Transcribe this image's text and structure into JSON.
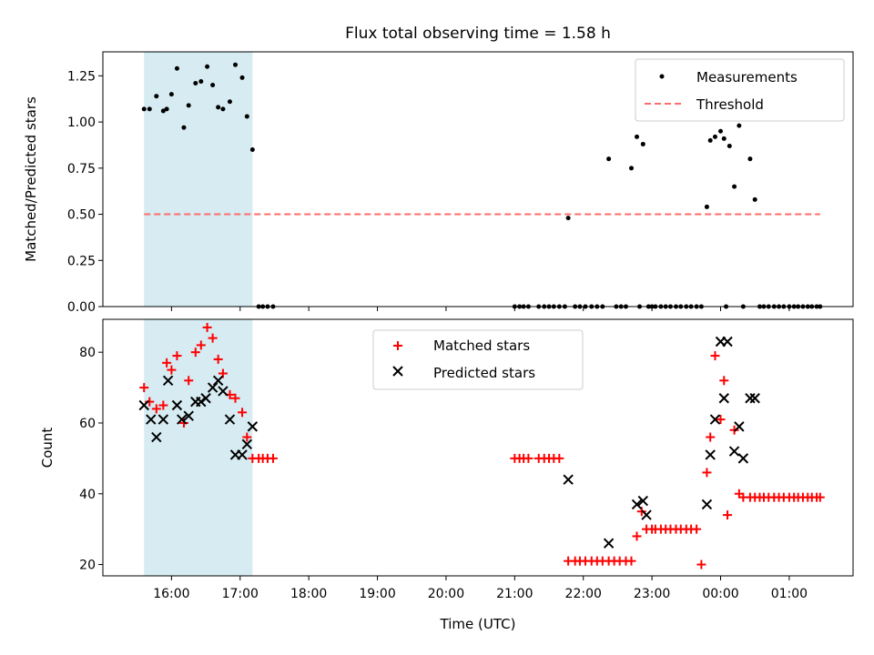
{
  "colors": {
    "shade": "#add8e6",
    "measurement": "#000000",
    "threshold": "#ff6b6b",
    "matched": "#ff0000",
    "predicted": "#000000"
  },
  "chart_data": [
    {
      "type": "scatter",
      "title": "Flux total observing time = 1.58 h",
      "xlabel": "",
      "ylabel": "Matched/Predicted stars",
      "x_units": "hours since 00:00 UTC (values >24 are after midnight)",
      "xlim": [
        15.0,
        25.93
      ],
      "ylim": [
        0,
        1.38
      ],
      "yticks": [
        0,
        0.25,
        0.5,
        0.75,
        1.0,
        1.25
      ],
      "ytick_labels": [
        "0.00",
        "0.25",
        "0.50",
        "0.75",
        "1.00",
        "1.25"
      ],
      "xticks": [
        16,
        17,
        18,
        19,
        20,
        21,
        22,
        23,
        24,
        25
      ],
      "shaded_span": [
        15.6,
        17.18
      ],
      "legend": [
        "Measurements",
        "Threshold"
      ],
      "legend_position": "top-right",
      "threshold": {
        "name": "Threshold",
        "value": 0.5,
        "x_range": [
          15.6,
          25.45
        ]
      },
      "series": [
        {
          "name": "Measurements",
          "x": [
            15.6,
            15.68,
            15.78,
            15.88,
            15.93,
            16.0,
            16.08,
            16.18,
            16.25,
            16.35,
            16.43,
            16.52,
            16.6,
            16.68,
            16.75,
            16.85,
            16.93,
            17.03,
            17.1,
            17.18,
            17.27,
            17.33,
            17.4,
            17.48,
            21.0,
            21.07,
            21.13,
            21.2,
            21.35,
            21.43,
            21.5,
            21.57,
            21.65,
            21.73,
            21.78,
            21.88,
            21.95,
            22.03,
            22.12,
            22.2,
            22.28,
            22.37,
            22.48,
            22.55,
            22.62,
            22.7,
            22.78,
            22.82,
            22.87,
            22.95,
            23.0,
            23.05,
            23.13,
            23.2,
            23.27,
            23.35,
            23.42,
            23.5,
            23.57,
            23.65,
            23.72,
            23.8,
            23.85,
            23.92,
            24.0,
            24.05,
            24.08,
            24.13,
            24.2,
            24.27,
            24.33,
            24.43,
            24.5,
            24.57,
            24.63,
            24.7,
            24.78,
            24.85,
            24.92,
            25.0,
            25.07,
            25.13,
            25.2,
            25.27,
            25.33,
            25.4,
            25.45
          ],
          "y": [
            1.07,
            1.07,
            1.14,
            1.06,
            1.07,
            1.15,
            1.29,
            0.97,
            1.09,
            1.21,
            1.22,
            1.3,
            1.2,
            1.08,
            1.07,
            1.11,
            1.31,
            1.24,
            1.03,
            0.85,
            0,
            0,
            0,
            0,
            0,
            0,
            0,
            0,
            0,
            0,
            0,
            0,
            0,
            0,
            0.48,
            0,
            0,
            0,
            0,
            0,
            0,
            0.8,
            0,
            0,
            0,
            0.75,
            0.92,
            0,
            0.88,
            0,
            0,
            0,
            0,
            0,
            0,
            0,
            0,
            0,
            0,
            0,
            0,
            0.54,
            0.9,
            0.92,
            0.95,
            0.91,
            0,
            0.87,
            0.65,
            0.98,
            0,
            0.8,
            0.58,
            0,
            0,
            0,
            0,
            0,
            0,
            0,
            0,
            0,
            0,
            0,
            0,
            0,
            0
          ]
        }
      ]
    },
    {
      "type": "scatter",
      "title": "",
      "xlabel": "Time (UTC)",
      "ylabel": "Count",
      "xlim": [
        15.0,
        25.93
      ],
      "ylim": [
        16.8,
        89.3
      ],
      "yticks": [
        20,
        40,
        60,
        80
      ],
      "ytick_labels": [
        "20",
        "40",
        "60",
        "80"
      ],
      "xticks": [
        16,
        17,
        18,
        19,
        20,
        21,
        22,
        23,
        24,
        25
      ],
      "xtick_labels": [
        "16:00",
        "17:00",
        "18:00",
        "19:00",
        "20:00",
        "21:00",
        "22:00",
        "23:00",
        "00:00",
        "01:00"
      ],
      "shaded_span": [
        15.6,
        17.18
      ],
      "legend": [
        "Matched stars",
        "Predicted stars"
      ],
      "legend_position": "top-center",
      "series": [
        {
          "name": "Matched stars",
          "marker": "+",
          "x": [
            15.6,
            15.68,
            15.78,
            15.88,
            15.93,
            16.0,
            16.08,
            16.18,
            16.25,
            16.35,
            16.43,
            16.52,
            16.6,
            16.68,
            16.75,
            16.85,
            16.93,
            17.03,
            17.1,
            17.18,
            17.27,
            17.33,
            17.4,
            17.48,
            21.0,
            21.07,
            21.13,
            21.2,
            21.35,
            21.43,
            21.5,
            21.57,
            21.65,
            21.78,
            21.88,
            21.95,
            22.03,
            22.12,
            22.2,
            22.28,
            22.37,
            22.45,
            22.53,
            22.62,
            22.7,
            22.78,
            22.85,
            22.92,
            23.0,
            23.05,
            23.13,
            23.2,
            23.27,
            23.35,
            23.42,
            23.5,
            23.57,
            23.65,
            23.72,
            23.8,
            23.85,
            23.92,
            24.0,
            24.05,
            24.1,
            24.2,
            24.27,
            24.33,
            24.43,
            24.5,
            24.57,
            24.63,
            24.7,
            24.78,
            24.85,
            24.92,
            25.0,
            25.07,
            25.13,
            25.2,
            25.27,
            25.33,
            25.4,
            25.45
          ],
          "y": [
            70,
            66,
            64,
            65,
            77,
            75,
            79,
            60,
            72,
            80,
            82,
            87,
            84,
            78,
            74,
            68,
            67,
            63,
            56,
            50,
            50,
            50,
            50,
            50,
            50,
            50,
            50,
            50,
            50,
            50,
            50,
            50,
            50,
            21,
            21,
            21,
            21,
            21,
            21,
            21,
            21,
            21,
            21,
            21,
            21,
            28,
            35,
            30,
            30,
            30,
            30,
            30,
            30,
            30,
            30,
            30,
            30,
            30,
            20,
            46,
            56,
            79,
            61,
            72,
            34,
            58,
            40,
            39,
            39,
            39,
            39,
            39,
            39,
            39,
            39,
            39,
            39,
            39,
            39,
            39,
            39,
            39,
            39,
            39
          ]
        },
        {
          "name": "Predicted stars",
          "marker": "x",
          "x": [
            15.6,
            15.7,
            15.78,
            15.88,
            15.95,
            16.08,
            16.15,
            16.25,
            16.35,
            16.43,
            16.5,
            16.6,
            16.68,
            16.75,
            16.85,
            16.93,
            17.03,
            17.1,
            17.18,
            21.78,
            22.37,
            22.78,
            22.87,
            22.92,
            23.8,
            23.85,
            23.92,
            24.0,
            24.05,
            24.1,
            24.2,
            24.27,
            24.33,
            24.43,
            24.5
          ],
          "y": [
            65,
            61,
            56,
            61,
            72,
            65,
            61,
            62,
            66,
            66,
            67,
            70,
            72,
            69,
            61,
            51,
            51,
            54,
            59,
            44,
            26,
            37,
            38,
            34,
            37,
            51,
            61,
            83,
            67,
            83,
            52,
            59,
            50,
            67,
            67
          ]
        }
      ]
    }
  ]
}
